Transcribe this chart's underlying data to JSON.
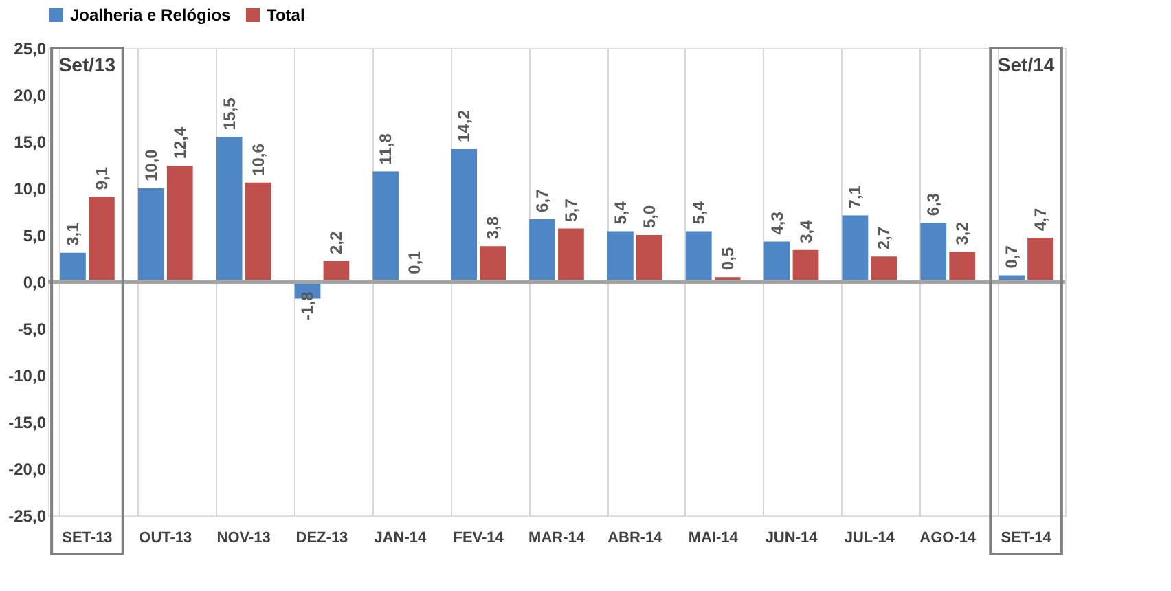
{
  "chart_data": {
    "type": "bar",
    "categories": [
      "SET-13",
      "OUT-13",
      "NOV-13",
      "DEZ-13",
      "JAN-14",
      "FEV-14",
      "MAR-14",
      "ABR-14",
      "MAI-14",
      "JUN-14",
      "JUL-14",
      "AGO-14",
      "SET-14"
    ],
    "series": [
      {
        "name": "Joalheria e Relógios",
        "color": "#4f86c6",
        "values": [
          3.1,
          10.0,
          15.5,
          -1.8,
          11.8,
          14.2,
          6.7,
          5.4,
          5.4,
          4.3,
          7.1,
          6.3,
          0.7
        ],
        "value_labels": [
          "3,1",
          "10,0",
          "15,5",
          "-1,8",
          "11,8",
          "14,2",
          "6,7",
          "5,4",
          "5,4",
          "4,3",
          "7,1",
          "6,3",
          "0,7"
        ]
      },
      {
        "name": "Total",
        "color": "#c0504d",
        "values": [
          9.1,
          12.4,
          10.6,
          2.2,
          0.1,
          3.8,
          5.7,
          5.0,
          0.5,
          3.4,
          2.7,
          3.2,
          4.7
        ],
        "value_labels": [
          "9,1",
          "12,4",
          "10,6",
          "2,2",
          "0,1",
          "3,8",
          "5,7",
          "5,0",
          "0,5",
          "3,4",
          "2,7",
          "3,2",
          "4,7"
        ]
      }
    ],
    "ylim": [
      -25,
      25
    ],
    "yticks": [
      {
        "value": -25,
        "label": "-25,0"
      },
      {
        "value": -20,
        "label": "-20,0"
      },
      {
        "value": -15,
        "label": "-15,0"
      },
      {
        "value": -10,
        "label": "-10,0"
      },
      {
        "value": -5,
        "label": "-5,0"
      },
      {
        "value": 0,
        "label": "0,0"
      },
      {
        "value": 5,
        "label": "5,0"
      },
      {
        "value": 10,
        "label": "10,0"
      },
      {
        "value": 15,
        "label": "15,0"
      },
      {
        "value": 20,
        "label": "20,0"
      },
      {
        "value": 25,
        "label": "25,0"
      }
    ],
    "ref_lines": [
      {
        "axis": "y",
        "value": 0,
        "color": "#a6a6a6"
      }
    ],
    "annotations": [
      "Set/13",
      "Set/14"
    ],
    "grid": "x",
    "legend": "top"
  }
}
